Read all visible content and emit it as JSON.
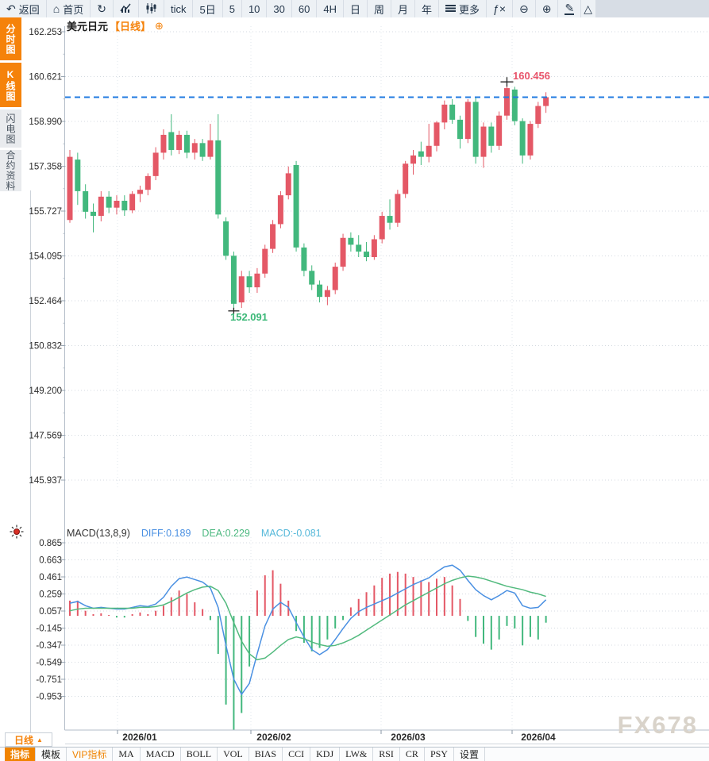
{
  "toolbar": {
    "items": [
      {
        "name": "back",
        "icon": "back",
        "label": "返回"
      },
      {
        "name": "home",
        "icon": "home",
        "label": "首页"
      },
      {
        "name": "refresh",
        "icon": "refresh",
        "label": ""
      },
      {
        "name": "timeline-chart",
        "icon": "area-chart",
        "label": ""
      },
      {
        "name": "kline-chart",
        "icon": "candle-chart",
        "label": ""
      },
      {
        "name": "tick",
        "icon": "",
        "label": "tick"
      },
      {
        "name": "5d",
        "icon": "",
        "label": "5日"
      },
      {
        "name": "5min",
        "icon": "",
        "label": "5"
      },
      {
        "name": "10min",
        "icon": "",
        "label": "10"
      },
      {
        "name": "30min",
        "icon": "",
        "label": "30"
      },
      {
        "name": "60min",
        "icon": "",
        "label": "60"
      },
      {
        "name": "4h",
        "icon": "",
        "label": "4H"
      },
      {
        "name": "day",
        "icon": "",
        "label": "日"
      },
      {
        "name": "week",
        "icon": "",
        "label": "周"
      },
      {
        "name": "month",
        "icon": "",
        "label": "月"
      },
      {
        "name": "year",
        "icon": "",
        "label": "年"
      },
      {
        "name": "more",
        "icon": "menu",
        "label": "更多"
      },
      {
        "name": "fx",
        "icon": "fx",
        "label": ""
      },
      {
        "name": "zoom-out",
        "icon": "zoom-out",
        "label": ""
      },
      {
        "name": "zoom-in",
        "icon": "zoom-in",
        "label": ""
      },
      {
        "name": "draw",
        "icon": "pen",
        "label": ""
      },
      {
        "name": "shape",
        "icon": "triangle",
        "label": ""
      }
    ]
  },
  "sidebar": {
    "items": [
      {
        "name": "time-chart",
        "label": "分时图",
        "style": "orange"
      },
      {
        "name": "kline-chart",
        "label": "K线图",
        "style": "orange"
      },
      {
        "name": "lightning-chart",
        "label": "闪电图",
        "style": "gray"
      },
      {
        "name": "contract-info",
        "label": "合约资料",
        "style": "gray"
      }
    ]
  },
  "chart": {
    "title": "美元日元",
    "period_tag": "【日线】",
    "plus_icon": "⊕",
    "high_label": "160.456",
    "low_label": "152.091",
    "watermark": "FX678"
  },
  "macd_header": {
    "name": "MACD(13,8,9)",
    "diff_label": "DIFF:0.189",
    "dea_label": "DEA:0.229",
    "macd_label": "MACD:-0.081"
  },
  "bottom": {
    "period_label": "日线",
    "period_arrow": "▲",
    "tabs": [
      {
        "name": "indicator",
        "label": "指标",
        "style": "sel"
      },
      {
        "name": "template",
        "label": "模板",
        "style": ""
      },
      {
        "name": "vip-indicator",
        "label": "VIP指标",
        "style": "vip"
      },
      {
        "name": "ma",
        "label": "MA",
        "style": "serif"
      },
      {
        "name": "macd",
        "label": "MACD",
        "style": "serif"
      },
      {
        "name": "boll",
        "label": "BOLL",
        "style": "serif"
      },
      {
        "name": "vol",
        "label": "VOL",
        "style": "serif"
      },
      {
        "name": "bias",
        "label": "BIAS",
        "style": "serif"
      },
      {
        "name": "cci",
        "label": "CCI",
        "style": "serif"
      },
      {
        "name": "kdj",
        "label": "KDJ",
        "style": "serif"
      },
      {
        "name": "lw",
        "label": "LW&",
        "style": "serif"
      },
      {
        "name": "rsi",
        "label": "RSI",
        "style": "serif"
      },
      {
        "name": "cr",
        "label": "CR",
        "style": "serif"
      },
      {
        "name": "psy",
        "label": "PSY",
        "style": "serif"
      },
      {
        "name": "settings",
        "label": "设置",
        "style": ""
      }
    ]
  },
  "chart_data": {
    "type": "candlestick+macd",
    "symbol": "美元日元",
    "period": "日线",
    "price_axis_labels": [
      "162.253",
      "160.621",
      "158.990",
      "157.358",
      "155.727",
      "154.095",
      "152.464",
      "150.832",
      "149.200",
      "147.569",
      "145.937"
    ],
    "x_axis_labels": [
      "2026/01",
      "2026/02",
      "2026/03",
      "2026/04"
    ],
    "price_axis_range": [
      145.937,
      162.253
    ],
    "last_price": 159.87,
    "high_annotation": 160.456,
    "low_annotation": 152.091,
    "candles_ohlc": [
      [
        155.4,
        157.95,
        155.3,
        157.7
      ],
      [
        157.6,
        157.85,
        155.95,
        156.45
      ],
      [
        156.45,
        156.7,
        155.45,
        155.7
      ],
      [
        155.7,
        156.0,
        154.95,
        155.55
      ],
      [
        155.55,
        156.45,
        155.35,
        156.25
      ],
      [
        156.25,
        156.45,
        155.65,
        155.85
      ],
      [
        155.85,
        156.3,
        155.6,
        156.1
      ],
      [
        156.1,
        156.3,
        155.55,
        155.75
      ],
      [
        155.75,
        156.45,
        155.65,
        156.35
      ],
      [
        156.35,
        156.65,
        156.05,
        156.5
      ],
      [
        156.5,
        157.1,
        156.3,
        157.0
      ],
      [
        157.0,
        158.05,
        156.85,
        157.85
      ],
      [
        157.85,
        158.7,
        157.6,
        158.5
      ],
      [
        158.6,
        159.25,
        157.75,
        157.95
      ],
      [
        157.95,
        158.65,
        157.8,
        158.5
      ],
      [
        158.5,
        158.65,
        157.65,
        157.85
      ],
      [
        157.85,
        158.35,
        157.6,
        158.2
      ],
      [
        158.2,
        158.35,
        157.55,
        157.7
      ],
      [
        157.7,
        158.9,
        157.6,
        158.3
      ],
      [
        158.3,
        159.25,
        155.45,
        155.6
      ],
      [
        155.35,
        155.5,
        153.95,
        154.1
      ],
      [
        154.1,
        154.25,
        152.091,
        152.35
      ],
      [
        152.4,
        153.55,
        152.2,
        153.35
      ],
      [
        153.35,
        153.55,
        152.75,
        152.95
      ],
      [
        152.95,
        153.65,
        152.75,
        153.45
      ],
      [
        153.45,
        154.5,
        153.3,
        154.35
      ],
      [
        154.35,
        155.4,
        154.2,
        155.25
      ],
      [
        155.25,
        156.45,
        155.1,
        156.3
      ],
      [
        156.3,
        157.35,
        156.15,
        157.1
      ],
      [
        157.4,
        157.55,
        154.25,
        154.4
      ],
      [
        154.4,
        154.55,
        153.35,
        153.55
      ],
      [
        153.55,
        153.75,
        152.85,
        153.05
      ],
      [
        153.05,
        153.2,
        152.4,
        152.6
      ],
      [
        152.6,
        153.0,
        152.3,
        152.85
      ],
      [
        152.85,
        153.85,
        152.7,
        153.7
      ],
      [
        153.7,
        154.9,
        153.55,
        154.75
      ],
      [
        154.75,
        154.95,
        154.25,
        154.5
      ],
      [
        154.5,
        154.85,
        154.05,
        154.25
      ],
      [
        154.25,
        154.6,
        153.9,
        154.05
      ],
      [
        154.05,
        154.85,
        153.95,
        154.7
      ],
      [
        154.7,
        155.7,
        154.55,
        155.55
      ],
      [
        155.55,
        156.15,
        155.05,
        155.3
      ],
      [
        155.3,
        156.5,
        155.15,
        156.35
      ],
      [
        156.35,
        157.55,
        156.2,
        157.45
      ],
      [
        157.45,
        157.95,
        157.05,
        157.75
      ],
      [
        157.9,
        158.25,
        157.4,
        157.7
      ],
      [
        157.7,
        158.9,
        157.5,
        158.1
      ],
      [
        158.1,
        159.0,
        157.9,
        158.95
      ],
      [
        158.95,
        159.75,
        158.7,
        159.6
      ],
      [
        159.6,
        159.8,
        158.9,
        159.05
      ],
      [
        159.05,
        159.2,
        158.0,
        158.35
      ],
      [
        158.35,
        159.8,
        158.2,
        159.7
      ],
      [
        159.7,
        159.85,
        157.45,
        157.7
      ],
      [
        157.7,
        158.95,
        157.3,
        158.8
      ],
      [
        158.8,
        158.95,
        157.85,
        158.1
      ],
      [
        158.1,
        159.35,
        157.95,
        159.2
      ],
      [
        159.2,
        160.456,
        159.05,
        160.2
      ],
      [
        160.15,
        160.25,
        158.85,
        159.0
      ],
      [
        159.0,
        159.1,
        157.45,
        157.75
      ],
      [
        157.75,
        159.0,
        157.6,
        158.9
      ],
      [
        158.9,
        159.7,
        158.75,
        159.55
      ],
      [
        159.55,
        160.05,
        159.3,
        159.87
      ]
    ],
    "macd": {
      "params": "13,8,9",
      "diff": 0.189,
      "dea": 0.229,
      "macd": -0.081,
      "y_axis_labels": [
        "0.865",
        "0.663",
        "0.461",
        "0.259",
        "0.057",
        "-0.145",
        "-0.347",
        "-0.549",
        "-0.751",
        "-0.953"
      ],
      "axis_range": [
        -0.953,
        0.865
      ],
      "diff_line": [
        0.15,
        0.17,
        0.12,
        0.09,
        0.1,
        0.09,
        0.08,
        0.08,
        0.1,
        0.12,
        0.11,
        0.14,
        0.22,
        0.35,
        0.44,
        0.46,
        0.43,
        0.4,
        0.33,
        0.1,
        -0.35,
        -0.75,
        -0.93,
        -0.8,
        -0.45,
        -0.12,
        0.08,
        0.16,
        0.1,
        -0.08,
        -0.25,
        -0.4,
        -0.46,
        -0.4,
        -0.28,
        -0.15,
        -0.03,
        0.05,
        0.1,
        0.14,
        0.18,
        0.22,
        0.27,
        0.32,
        0.37,
        0.41,
        0.45,
        0.52,
        0.58,
        0.6,
        0.54,
        0.42,
        0.31,
        0.24,
        0.19,
        0.24,
        0.3,
        0.27,
        0.12,
        0.09,
        0.1,
        0.19
      ],
      "dea_line": [
        0.06,
        0.08,
        0.09,
        0.09,
        0.09,
        0.09,
        0.09,
        0.09,
        0.09,
        0.1,
        0.1,
        0.11,
        0.13,
        0.17,
        0.22,
        0.27,
        0.31,
        0.34,
        0.35,
        0.3,
        0.15,
        -0.08,
        -0.3,
        -0.45,
        -0.52,
        -0.5,
        -0.43,
        -0.35,
        -0.28,
        -0.25,
        -0.27,
        -0.31,
        -0.34,
        -0.36,
        -0.35,
        -0.32,
        -0.28,
        -0.23,
        -0.17,
        -0.11,
        -0.05,
        0.01,
        0.07,
        0.13,
        0.18,
        0.23,
        0.28,
        0.33,
        0.38,
        0.42,
        0.45,
        0.47,
        0.46,
        0.44,
        0.41,
        0.38,
        0.35,
        0.33,
        0.31,
        0.28,
        0.26,
        0.23
      ],
      "histogram": [
        0.18,
        0.18,
        0.06,
        0.02,
        0.03,
        0.01,
        -0.02,
        -0.02,
        0.02,
        0.04,
        0.02,
        0.06,
        0.12,
        0.22,
        0.3,
        0.26,
        0.16,
        0.08,
        -0.05,
        -0.45,
        -1.05,
        -1.35,
        -1.15,
        -0.6,
        0.3,
        0.48,
        0.54,
        0.38,
        0.18,
        -0.18,
        -0.32,
        -0.42,
        -0.38,
        -0.28,
        -0.15,
        -0.05,
        0.1,
        0.2,
        0.28,
        0.36,
        0.45,
        0.5,
        0.52,
        0.5,
        0.46,
        0.42,
        0.4,
        0.44,
        0.46,
        0.36,
        0.2,
        -0.06,
        -0.25,
        -0.33,
        -0.4,
        -0.28,
        -0.12,
        -0.15,
        -0.35,
        -0.25,
        -0.28,
        -0.081
      ]
    },
    "colors": {
      "up": "#e45866",
      "down": "#42b87d",
      "diff_line": "#4a90e2",
      "dea_line": "#52ba7e",
      "last_price_line": "#1f7ae0",
      "accent_orange": "#f5820a",
      "annotation_high": "#e8546b",
      "annotation_low": "#3cb878"
    }
  }
}
